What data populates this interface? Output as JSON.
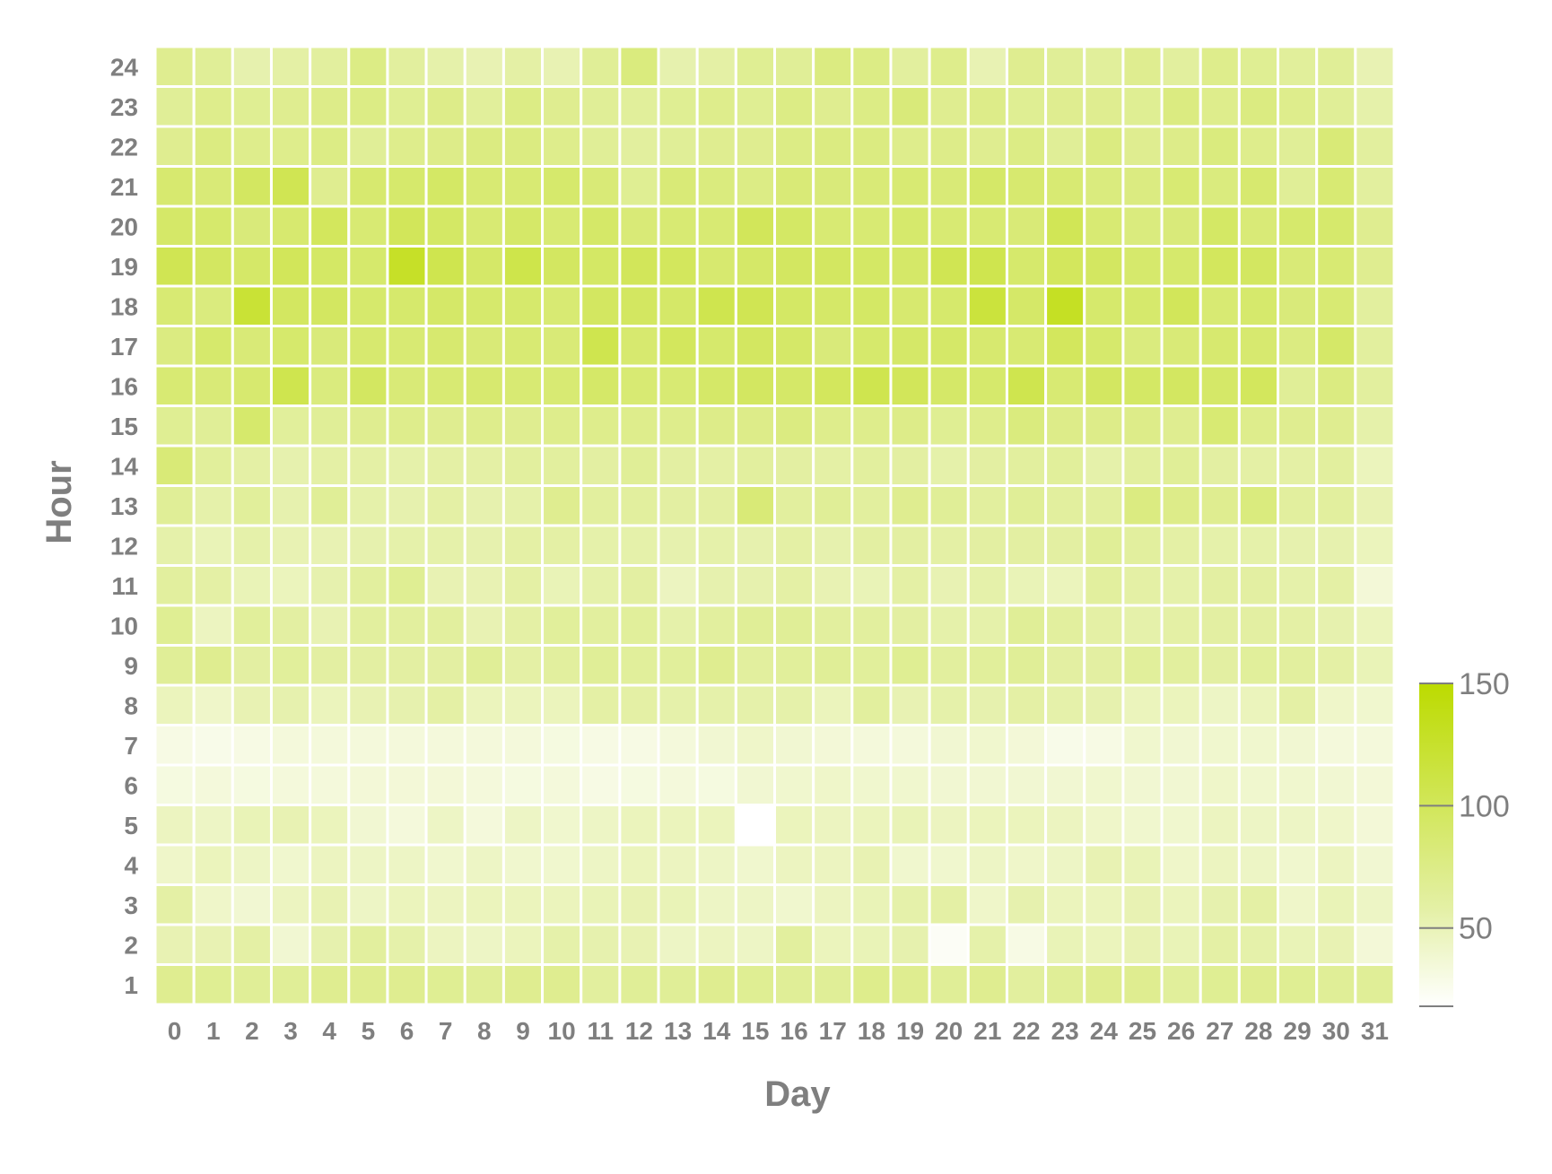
{
  "chart_data": {
    "type": "heatmap",
    "xlabel": "Day",
    "ylabel": "Hour",
    "x_categories": [
      "0",
      "1",
      "2",
      "3",
      "4",
      "5",
      "6",
      "7",
      "8",
      "9",
      "10",
      "11",
      "12",
      "13",
      "14",
      "15",
      "16",
      "17",
      "18",
      "19",
      "20",
      "21",
      "22",
      "23",
      "24",
      "25",
      "26",
      "27",
      "28",
      "29",
      "30",
      "31"
    ],
    "y_categories": [
      "1",
      "2",
      "3",
      "4",
      "5",
      "6",
      "7",
      "8",
      "9",
      "10",
      "11",
      "12",
      "13",
      "14",
      "15",
      "16",
      "17",
      "18",
      "19",
      "20",
      "21",
      "22",
      "23",
      "24"
    ],
    "value_range": [
      18,
      150
    ],
    "legend": {
      "ticks": [
        50,
        100,
        150
      ],
      "position": "right-bottom"
    },
    "colors": {
      "low": "#ffffff",
      "mid": "#e4f0a6",
      "high": "#bcdb00",
      "text": "#7f7f7f",
      "grid": "#ffffff"
    },
    "values": [
      [
        70,
        68,
        66,
        66,
        70,
        70,
        70,
        68,
        66,
        70,
        70,
        62,
        66,
        66,
        70,
        68,
        66,
        66,
        72,
        70,
        66,
        70,
        62,
        66,
        70,
        70,
        64,
        68,
        70,
        68,
        66,
        66
      ],
      [
        52,
        52,
        58,
        38,
        54,
        62,
        56,
        46,
        44,
        48,
        56,
        54,
        52,
        44,
        46,
        44,
        62,
        48,
        50,
        54,
        22,
        56,
        30,
        50,
        48,
        52,
        50,
        58,
        56,
        50,
        52,
        36
      ],
      [
        58,
        42,
        38,
        46,
        52,
        44,
        48,
        46,
        48,
        48,
        48,
        50,
        52,
        50,
        44,
        44,
        40,
        46,
        50,
        56,
        58,
        42,
        54,
        48,
        48,
        52,
        48,
        54,
        58,
        42,
        50,
        44
      ],
      [
        42,
        48,
        44,
        40,
        46,
        44,
        44,
        40,
        44,
        40,
        40,
        44,
        48,
        46,
        44,
        40,
        46,
        46,
        52,
        40,
        40,
        44,
        42,
        44,
        52,
        50,
        42,
        46,
        44,
        40,
        46,
        38
      ],
      [
        46,
        44,
        50,
        52,
        48,
        38,
        34,
        44,
        34,
        44,
        40,
        44,
        48,
        48,
        48,
        18,
        48,
        46,
        48,
        50,
        46,
        48,
        48,
        46,
        42,
        40,
        40,
        46,
        44,
        44,
        42,
        36
      ],
      [
        32,
        34,
        32,
        34,
        34,
        36,
        36,
        36,
        34,
        32,
        34,
        30,
        32,
        34,
        32,
        38,
        40,
        42,
        40,
        40,
        38,
        38,
        38,
        38,
        40,
        38,
        38,
        42,
        40,
        40,
        38,
        36
      ],
      [
        30,
        28,
        30,
        34,
        34,
        34,
        34,
        34,
        34,
        34,
        32,
        30,
        30,
        34,
        38,
        42,
        38,
        36,
        34,
        34,
        38,
        40,
        36,
        28,
        30,
        40,
        38,
        40,
        40,
        38,
        34,
        34
      ],
      [
        48,
        42,
        52,
        54,
        48,
        52,
        54,
        58,
        48,
        48,
        48,
        58,
        58,
        56,
        56,
        56,
        56,
        48,
        62,
        52,
        56,
        54,
        58,
        56,
        54,
        48,
        48,
        44,
        48,
        58,
        42,
        40
      ],
      [
        66,
        70,
        60,
        64,
        60,
        60,
        60,
        60,
        66,
        58,
        62,
        66,
        64,
        64,
        70,
        62,
        64,
        66,
        64,
        68,
        62,
        64,
        66,
        60,
        60,
        64,
        62,
        60,
        64,
        62,
        58,
        50
      ],
      [
        68,
        46,
        64,
        60,
        52,
        62,
        62,
        62,
        52,
        58,
        64,
        62,
        64,
        56,
        62,
        66,
        66,
        62,
        62,
        60,
        56,
        56,
        66,
        62,
        58,
        56,
        58,
        60,
        60,
        58,
        54,
        48
      ],
      [
        62,
        58,
        50,
        48,
        54,
        62,
        68,
        52,
        52,
        58,
        50,
        56,
        60,
        46,
        54,
        54,
        58,
        52,
        50,
        58,
        52,
        56,
        50,
        48,
        62,
        58,
        56,
        60,
        60,
        56,
        58,
        36
      ],
      [
        56,
        50,
        56,
        52,
        52,
        54,
        56,
        56,
        54,
        58,
        58,
        56,
        56,
        54,
        56,
        54,
        58,
        54,
        60,
        60,
        58,
        60,
        60,
        60,
        66,
        62,
        58,
        56,
        56,
        54,
        54,
        48
      ],
      [
        66,
        56,
        64,
        54,
        66,
        56,
        54,
        58,
        54,
        56,
        70,
        62,
        62,
        60,
        60,
        84,
        62,
        66,
        62,
        70,
        66,
        62,
        66,
        62,
        62,
        78,
        74,
        70,
        80,
        62,
        62,
        52
      ],
      [
        84,
        64,
        58,
        54,
        58,
        58,
        56,
        58,
        58,
        62,
        62,
        60,
        66,
        60,
        58,
        62,
        60,
        58,
        62,
        60,
        56,
        60,
        62,
        64,
        56,
        62,
        66,
        60,
        58,
        58,
        62,
        48
      ],
      [
        68,
        66,
        90,
        64,
        66,
        70,
        72,
        70,
        72,
        70,
        72,
        72,
        72,
        72,
        74,
        74,
        78,
        72,
        72,
        74,
        68,
        72,
        80,
        74,
        74,
        74,
        70,
        86,
        72,
        70,
        70,
        56
      ],
      [
        86,
        84,
        88,
        106,
        80,
        96,
        84,
        86,
        88,
        86,
        86,
        92,
        86,
        86,
        92,
        96,
        92,
        98,
        106,
        100,
        92,
        90,
        106,
        86,
        96,
        94,
        96,
        92,
        98,
        66,
        78,
        62
      ],
      [
        78,
        90,
        84,
        90,
        82,
        88,
        86,
        88,
        84,
        86,
        84,
        106,
        88,
        98,
        90,
        96,
        92,
        82,
        90,
        92,
        92,
        88,
        86,
        98,
        90,
        80,
        84,
        88,
        88,
        78,
        92,
        62
      ],
      [
        86,
        80,
        120,
        96,
        96,
        90,
        90,
        92,
        90,
        90,
        86,
        96,
        96,
        92,
        106,
        104,
        94,
        92,
        94,
        88,
        90,
        116,
        92,
        130,
        90,
        90,
        100,
        86,
        90,
        82,
        86,
        62
      ],
      [
        104,
        96,
        92,
        100,
        94,
        90,
        128,
        106,
        92,
        108,
        96,
        94,
        100,
        98,
        88,
        92,
        96,
        96,
        94,
        92,
        104,
        106,
        90,
        98,
        96,
        90,
        90,
        98,
        96,
        84,
        86,
        70
      ],
      [
        92,
        90,
        82,
        88,
        98,
        86,
        100,
        94,
        86,
        92,
        86,
        92,
        84,
        86,
        86,
        100,
        94,
        86,
        86,
        90,
        86,
        86,
        84,
        102,
        86,
        80,
        82,
        94,
        84,
        90,
        90,
        70
      ],
      [
        88,
        84,
        96,
        104,
        70,
        88,
        90,
        94,
        86,
        86,
        90,
        84,
        68,
        84,
        80,
        76,
        84,
        82,
        84,
        86,
        84,
        92,
        88,
        86,
        80,
        78,
        86,
        80,
        88,
        66,
        86,
        62
      ],
      [
        70,
        78,
        72,
        72,
        76,
        66,
        72,
        74,
        78,
        78,
        72,
        66,
        62,
        66,
        70,
        70,
        76,
        78,
        78,
        72,
        74,
        70,
        76,
        66,
        78,
        70,
        74,
        80,
        72,
        66,
        84,
        62
      ],
      [
        66,
        72,
        68,
        70,
        74,
        76,
        68,
        74,
        64,
        76,
        70,
        66,
        64,
        68,
        72,
        68,
        76,
        70,
        76,
        82,
        70,
        74,
        68,
        70,
        70,
        68,
        78,
        72,
        78,
        72,
        66,
        56
      ],
      [
        70,
        66,
        54,
        58,
        62,
        76,
        62,
        56,
        52,
        58,
        52,
        66,
        80,
        54,
        58,
        68,
        66,
        78,
        76,
        62,
        72,
        52,
        70,
        66,
        64,
        70,
        62,
        72,
        68,
        64,
        66,
        52
      ]
    ]
  }
}
